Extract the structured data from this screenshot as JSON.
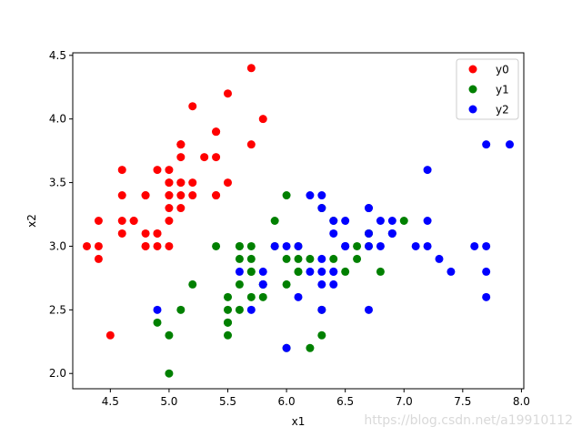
{
  "chart_data": {
    "type": "scatter",
    "xlabel": "x1",
    "ylabel": "x2",
    "xlim": [
      4.18,
      8.02
    ],
    "ylim": [
      1.88,
      4.52
    ],
    "xticks": [
      "4.5",
      "5.0",
      "5.5",
      "6.0",
      "6.5",
      "7.0",
      "7.5",
      "8.0"
    ],
    "yticks": [
      "2.0",
      "2.5",
      "3.0",
      "3.5",
      "4.0",
      "4.5"
    ],
    "grid": false,
    "legend_position": "top-right",
    "series": [
      {
        "name": "y0",
        "color": "#ff0000",
        "points": [
          [
            5.1,
            3.5
          ],
          [
            4.9,
            3.0
          ],
          [
            4.7,
            3.2
          ],
          [
            4.6,
            3.1
          ],
          [
            5.0,
            3.6
          ],
          [
            5.4,
            3.9
          ],
          [
            4.6,
            3.4
          ],
          [
            5.0,
            3.4
          ],
          [
            4.4,
            2.9
          ],
          [
            4.9,
            3.1
          ],
          [
            5.4,
            3.7
          ],
          [
            4.8,
            3.4
          ],
          [
            4.8,
            3.0
          ],
          [
            4.3,
            3.0
          ],
          [
            5.8,
            4.0
          ],
          [
            5.7,
            4.4
          ],
          [
            5.4,
            3.9
          ],
          [
            5.1,
            3.5
          ],
          [
            5.7,
            3.8
          ],
          [
            5.1,
            3.8
          ],
          [
            5.4,
            3.4
          ],
          [
            5.1,
            3.7
          ],
          [
            4.6,
            3.6
          ],
          [
            5.1,
            3.3
          ],
          [
            4.8,
            3.4
          ],
          [
            5.0,
            3.0
          ],
          [
            5.0,
            3.4
          ],
          [
            5.2,
            3.5
          ],
          [
            5.2,
            3.4
          ],
          [
            4.7,
            3.2
          ],
          [
            4.8,
            3.1
          ],
          [
            5.4,
            3.4
          ],
          [
            5.2,
            4.1
          ],
          [
            5.5,
            4.2
          ],
          [
            4.9,
            3.1
          ],
          [
            5.0,
            3.2
          ],
          [
            5.5,
            3.5
          ],
          [
            4.9,
            3.6
          ],
          [
            4.4,
            3.0
          ],
          [
            5.1,
            3.4
          ],
          [
            5.0,
            3.5
          ],
          [
            4.5,
            2.3
          ],
          [
            4.4,
            3.2
          ],
          [
            5.0,
            3.5
          ],
          [
            5.1,
            3.8
          ],
          [
            4.8,
            3.0
          ],
          [
            5.1,
            3.8
          ],
          [
            4.6,
            3.2
          ],
          [
            5.3,
            3.7
          ],
          [
            5.0,
            3.3
          ]
        ]
      },
      {
        "name": "y1",
        "color": "#008000",
        "points": [
          [
            7.0,
            3.2
          ],
          [
            6.4,
            3.2
          ],
          [
            6.9,
            3.1
          ],
          [
            5.5,
            2.3
          ],
          [
            6.5,
            2.8
          ],
          [
            5.7,
            2.8
          ],
          [
            6.3,
            3.3
          ],
          [
            4.9,
            2.4
          ],
          [
            6.6,
            2.9
          ],
          [
            5.2,
            2.7
          ],
          [
            5.0,
            2.0
          ],
          [
            5.9,
            3.0
          ],
          [
            6.0,
            2.2
          ],
          [
            6.1,
            2.9
          ],
          [
            5.6,
            2.9
          ],
          [
            6.7,
            3.1
          ],
          [
            5.6,
            3.0
          ],
          [
            5.8,
            2.7
          ],
          [
            6.2,
            2.2
          ],
          [
            5.6,
            2.5
          ],
          [
            5.9,
            3.2
          ],
          [
            6.1,
            2.8
          ],
          [
            6.3,
            2.5
          ],
          [
            6.1,
            2.8
          ],
          [
            6.4,
            2.9
          ],
          [
            6.6,
            3.0
          ],
          [
            6.8,
            2.8
          ],
          [
            6.7,
            3.0
          ],
          [
            6.0,
            2.9
          ],
          [
            5.7,
            2.6
          ],
          [
            5.5,
            2.4
          ],
          [
            5.5,
            2.4
          ],
          [
            5.8,
            2.7
          ],
          [
            6.0,
            2.7
          ],
          [
            5.4,
            3.0
          ],
          [
            6.0,
            3.4
          ],
          [
            6.7,
            3.1
          ],
          [
            6.3,
            2.3
          ],
          [
            5.6,
            3.0
          ],
          [
            5.5,
            2.5
          ],
          [
            5.5,
            2.6
          ],
          [
            6.1,
            3.0
          ],
          [
            5.8,
            2.6
          ],
          [
            5.0,
            2.3
          ],
          [
            5.6,
            2.7
          ],
          [
            5.7,
            3.0
          ],
          [
            5.7,
            2.9
          ],
          [
            6.2,
            2.9
          ],
          [
            5.1,
            2.5
          ],
          [
            5.7,
            2.8
          ]
        ]
      },
      {
        "name": "y2",
        "color": "#0000ff",
        "points": [
          [
            6.3,
            3.3
          ],
          [
            5.8,
            2.7
          ],
          [
            7.1,
            3.0
          ],
          [
            6.3,
            2.9
          ],
          [
            6.5,
            3.0
          ],
          [
            7.6,
            3.0
          ],
          [
            4.9,
            2.5
          ],
          [
            7.3,
            2.9
          ],
          [
            6.7,
            2.5
          ],
          [
            7.2,
            3.6
          ],
          [
            6.5,
            3.2
          ],
          [
            6.4,
            2.7
          ],
          [
            6.8,
            3.0
          ],
          [
            5.7,
            2.5
          ],
          [
            5.8,
            2.8
          ],
          [
            6.4,
            3.2
          ],
          [
            6.5,
            3.0
          ],
          [
            7.7,
            3.8
          ],
          [
            7.7,
            2.6
          ],
          [
            6.0,
            2.2
          ],
          [
            6.9,
            3.2
          ],
          [
            5.6,
            2.8
          ],
          [
            7.7,
            2.8
          ],
          [
            6.3,
            2.7
          ],
          [
            6.7,
            3.3
          ],
          [
            7.2,
            3.2
          ],
          [
            6.2,
            2.8
          ],
          [
            6.1,
            3.0
          ],
          [
            6.4,
            2.8
          ],
          [
            7.2,
            3.0
          ],
          [
            7.4,
            2.8
          ],
          [
            7.9,
            3.8
          ],
          [
            6.4,
            2.8
          ],
          [
            6.3,
            2.8
          ],
          [
            6.1,
            2.6
          ],
          [
            7.7,
            3.0
          ],
          [
            6.3,
            3.4
          ],
          [
            6.4,
            3.1
          ],
          [
            6.0,
            3.0
          ],
          [
            6.9,
            3.1
          ],
          [
            6.7,
            3.1
          ],
          [
            6.9,
            3.1
          ],
          [
            5.8,
            2.7
          ],
          [
            6.8,
            3.2
          ],
          [
            6.7,
            3.3
          ],
          [
            6.7,
            3.0
          ],
          [
            6.3,
            2.5
          ],
          [
            6.5,
            3.0
          ],
          [
            6.2,
            3.4
          ],
          [
            5.9,
            3.0
          ]
        ]
      }
    ]
  },
  "watermark": "https://blog.csdn.net/a19910112"
}
